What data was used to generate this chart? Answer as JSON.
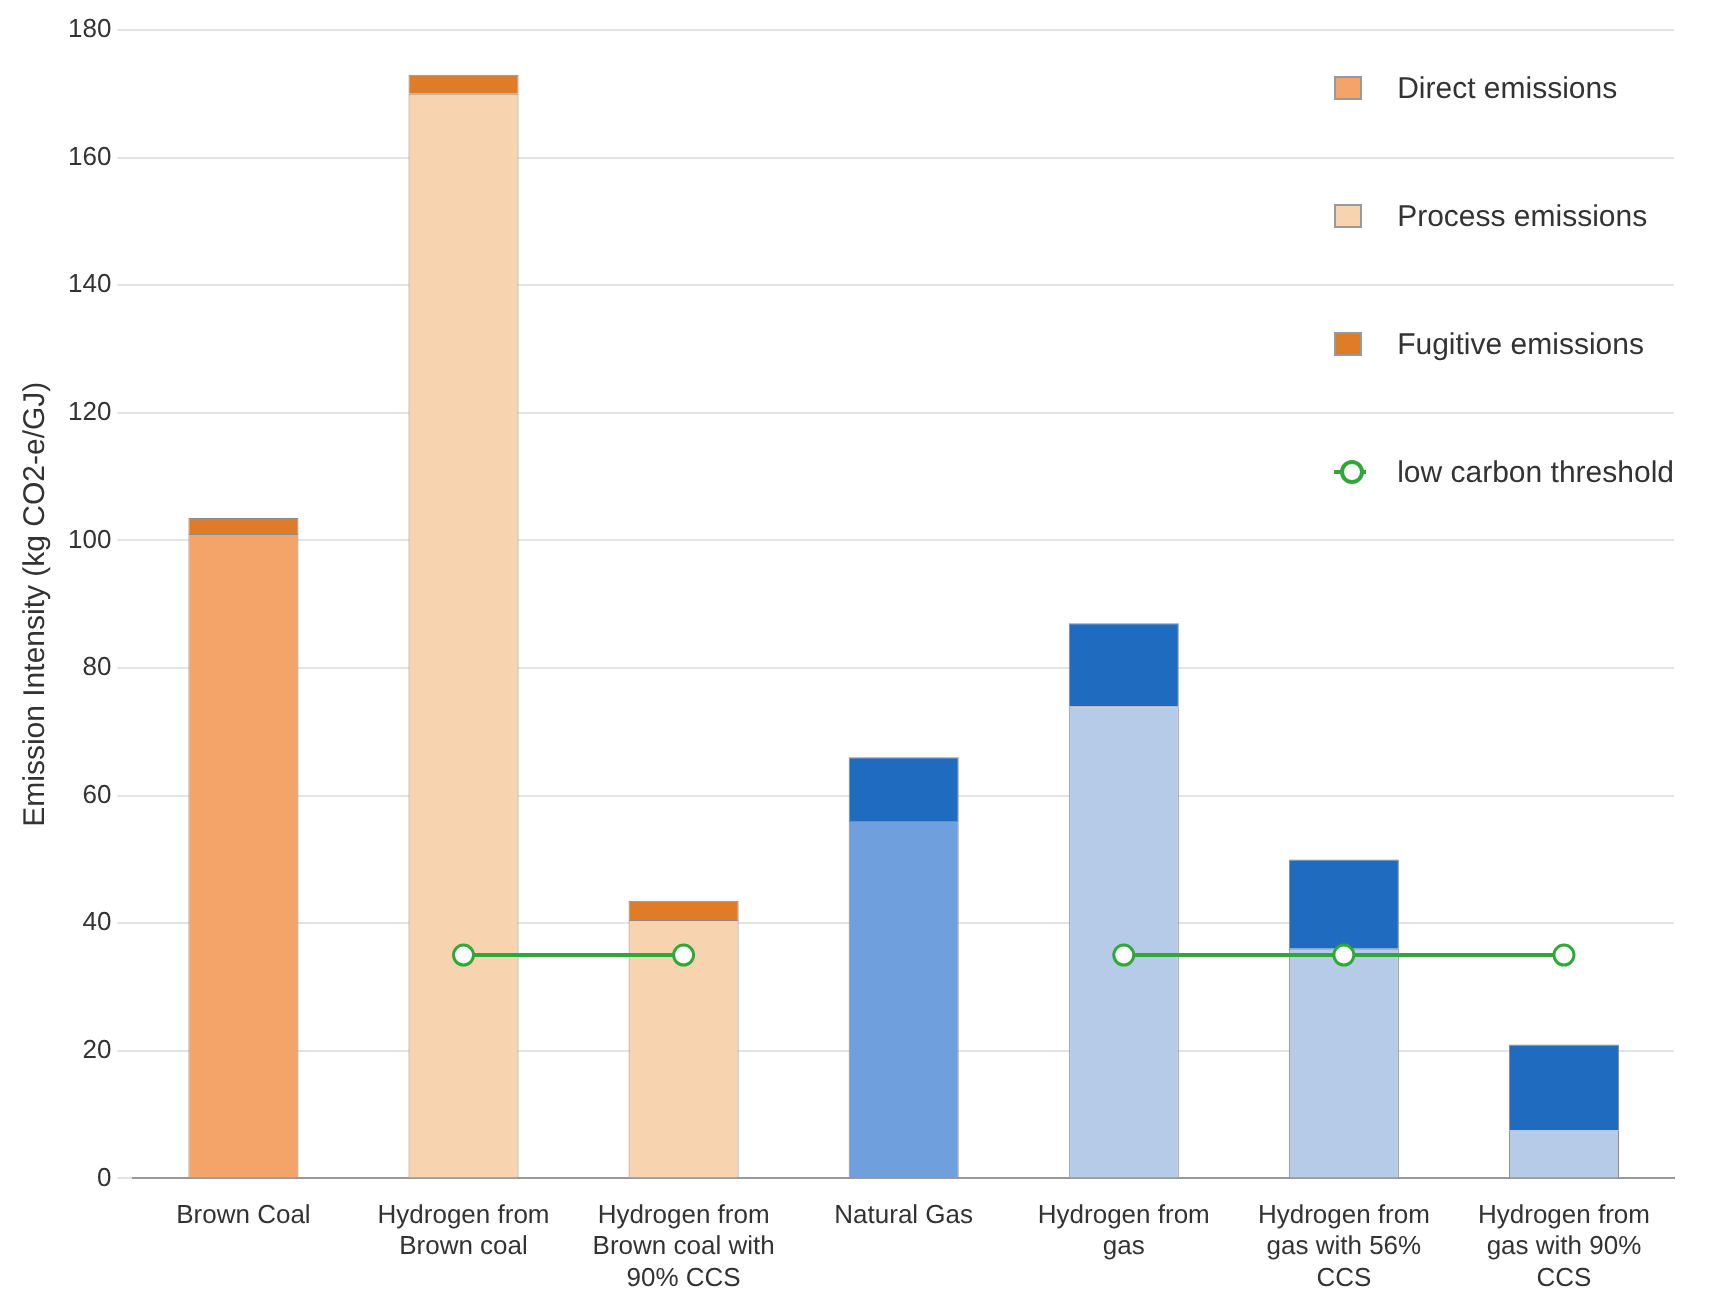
{
  "chart_data": {
    "type": "bar",
    "stacked": true,
    "ylabel": "Emission Intensity (kg CO2-e/GJ)",
    "categories": [
      "Brown Coal",
      "Hydrogen from Brown coal",
      "Hydrogen from Brown coal with 90% CCS",
      "Natural Gas",
      "Hydrogen from gas",
      "Hydrogen from gas with 56% CCS",
      "Hydrogen from gas with 90% CCS"
    ],
    "series": [
      {
        "name": "Direct emissions",
        "color": "#f4a468",
        "colors": [
          "#f4a468",
          null,
          null,
          "#6f9fdc",
          null,
          null,
          null
        ],
        "values": [
          101,
          null,
          null,
          56,
          null,
          null,
          null
        ]
      },
      {
        "name": "Process emissions",
        "color": "#f8d3b0",
        "colors": [
          "#f8d3b0",
          "#f8d3b0",
          "#f8d3b0",
          "#b5cbe8",
          "#b5cbe8",
          "#b5cbe8",
          "#b5cbe8"
        ],
        "values": [
          null,
          170,
          40.5,
          null,
          74,
          36,
          7.5
        ]
      },
      {
        "name": "Fugitive emissions",
        "color": "#e07b28",
        "colors": [
          "#e07b28",
          "#e07b28",
          "#e07b28",
          "#1f6bbf",
          "#1f6bbf",
          "#1f6bbf",
          "#1f6bbf"
        ],
        "values": [
          2.5,
          3,
          3,
          10,
          13,
          14,
          13.5
        ]
      },
      {
        "name": "low carbon threshold",
        "type": "line",
        "color": "#2ea836",
        "marker": "circle",
        "values": [
          null,
          35,
          35,
          null,
          35,
          35,
          35
        ]
      }
    ],
    "ylim": [
      0,
      180
    ],
    "yticks": [
      0,
      20,
      40,
      60,
      80,
      100,
      120,
      140,
      160,
      180
    ],
    "grid": "y",
    "legend": "top right"
  }
}
